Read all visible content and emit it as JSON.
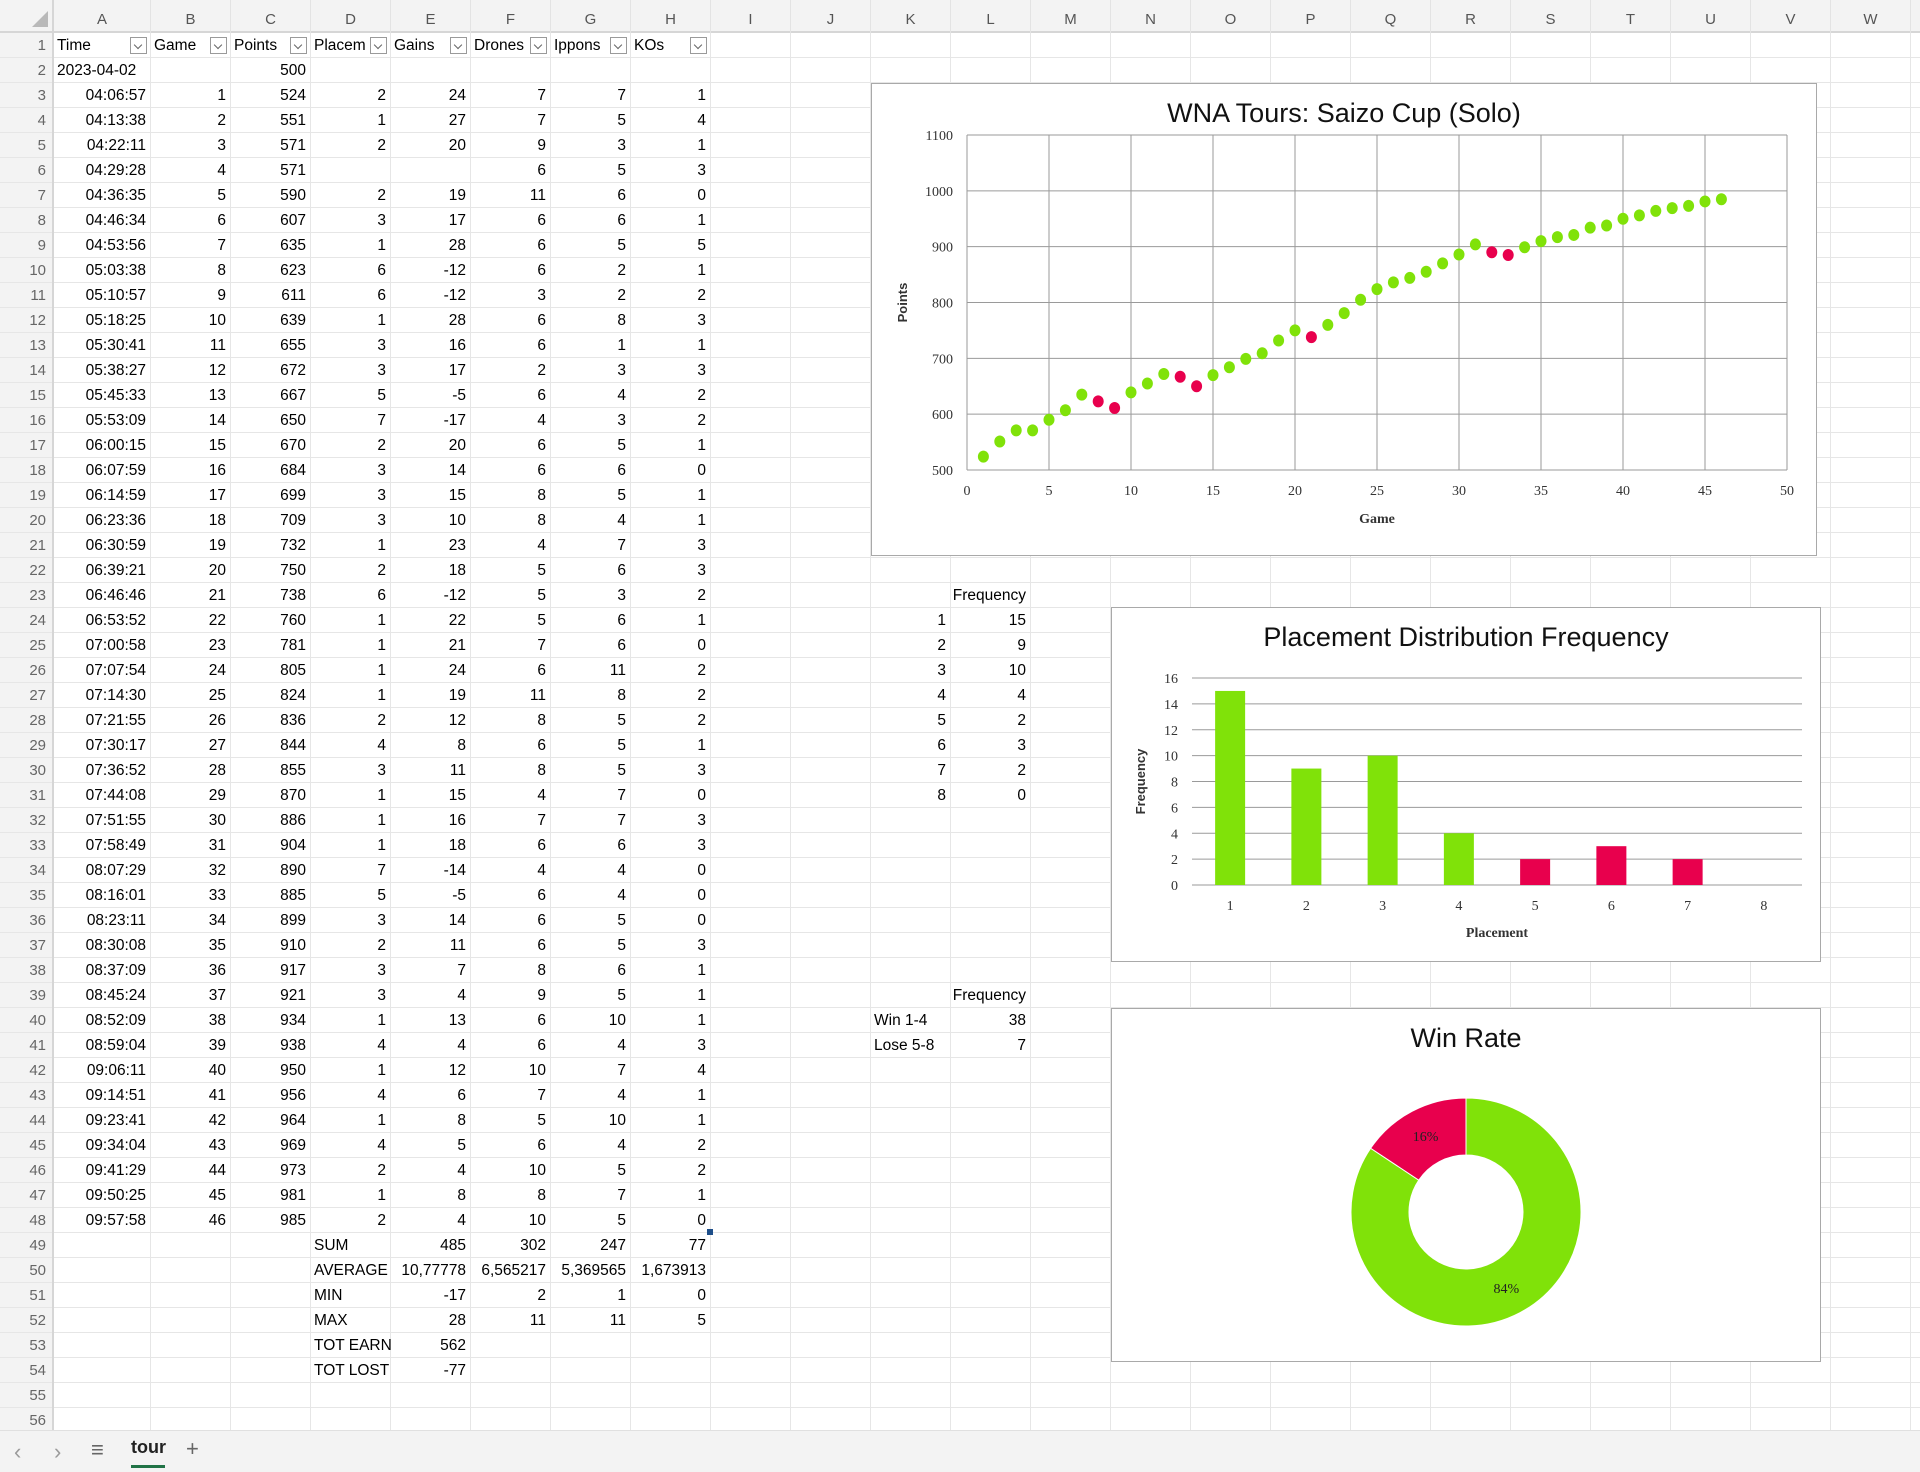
{
  "sheet": {
    "columns": [
      "A",
      "B",
      "C",
      "D",
      "E",
      "F",
      "G",
      "H",
      "I",
      "J",
      "K",
      "L",
      "M",
      "N",
      "O",
      "P",
      "Q",
      "R",
      "S",
      "T",
      "U",
      "V",
      "W"
    ],
    "row_count": 56,
    "headers": [
      "Time",
      "Game",
      "Points",
      "Placem",
      "Gains",
      "Drones",
      "Ippons",
      "KOs"
    ],
    "start_row": {
      "time": "2023-04-02",
      "points": "500"
    },
    "rows": [
      [
        "04:06:57",
        "1",
        "524",
        "2",
        "24",
        "7",
        "7",
        "1"
      ],
      [
        "04:13:38",
        "2",
        "551",
        "1",
        "27",
        "7",
        "5",
        "4"
      ],
      [
        "04:22:11",
        "3",
        "571",
        "2",
        "20",
        "9",
        "3",
        "1"
      ],
      [
        "04:29:28",
        "4",
        "571",
        "",
        "",
        "6",
        "5",
        "3"
      ],
      [
        "04:36:35",
        "5",
        "590",
        "2",
        "19",
        "11",
        "6",
        "0"
      ],
      [
        "04:46:34",
        "6",
        "607",
        "3",
        "17",
        "6",
        "6",
        "1"
      ],
      [
        "04:53:56",
        "7",
        "635",
        "1",
        "28",
        "6",
        "5",
        "5"
      ],
      [
        "05:03:38",
        "8",
        "623",
        "6",
        "-12",
        "6",
        "2",
        "1"
      ],
      [
        "05:10:57",
        "9",
        "611",
        "6",
        "-12",
        "3",
        "2",
        "2"
      ],
      [
        "05:18:25",
        "10",
        "639",
        "1",
        "28",
        "6",
        "8",
        "3"
      ],
      [
        "05:30:41",
        "11",
        "655",
        "3",
        "16",
        "6",
        "1",
        "1"
      ],
      [
        "05:38:27",
        "12",
        "672",
        "3",
        "17",
        "2",
        "3",
        "3"
      ],
      [
        "05:45:33",
        "13",
        "667",
        "5",
        "-5",
        "6",
        "4",
        "2"
      ],
      [
        "05:53:09",
        "14",
        "650",
        "7",
        "-17",
        "4",
        "3",
        "2"
      ],
      [
        "06:00:15",
        "15",
        "670",
        "2",
        "20",
        "6",
        "5",
        "1"
      ],
      [
        "06:07:59",
        "16",
        "684",
        "3",
        "14",
        "6",
        "6",
        "0"
      ],
      [
        "06:14:59",
        "17",
        "699",
        "3",
        "15",
        "8",
        "5",
        "1"
      ],
      [
        "06:23:36",
        "18",
        "709",
        "3",
        "10",
        "8",
        "4",
        "1"
      ],
      [
        "06:30:59",
        "19",
        "732",
        "1",
        "23",
        "4",
        "7",
        "3"
      ],
      [
        "06:39:21",
        "20",
        "750",
        "2",
        "18",
        "5",
        "6",
        "3"
      ],
      [
        "06:46:46",
        "21",
        "738",
        "6",
        "-12",
        "5",
        "3",
        "2"
      ],
      [
        "06:53:52",
        "22",
        "760",
        "1",
        "22",
        "5",
        "6",
        "1"
      ],
      [
        "07:00:58",
        "23",
        "781",
        "1",
        "21",
        "7",
        "6",
        "0"
      ],
      [
        "07:07:54",
        "24",
        "805",
        "1",
        "24",
        "6",
        "11",
        "2"
      ],
      [
        "07:14:30",
        "25",
        "824",
        "1",
        "19",
        "11",
        "8",
        "2"
      ],
      [
        "07:21:55",
        "26",
        "836",
        "2",
        "12",
        "8",
        "5",
        "2"
      ],
      [
        "07:30:17",
        "27",
        "844",
        "4",
        "8",
        "6",
        "5",
        "1"
      ],
      [
        "07:36:52",
        "28",
        "855",
        "3",
        "11",
        "8",
        "5",
        "3"
      ],
      [
        "07:44:08",
        "29",
        "870",
        "1",
        "15",
        "4",
        "7",
        "0"
      ],
      [
        "07:51:55",
        "30",
        "886",
        "1",
        "16",
        "7",
        "7",
        "3"
      ],
      [
        "07:58:49",
        "31",
        "904",
        "1",
        "18",
        "6",
        "6",
        "3"
      ],
      [
        "08:07:29",
        "32",
        "890",
        "7",
        "-14",
        "4",
        "4",
        "0"
      ],
      [
        "08:16:01",
        "33",
        "885",
        "5",
        "-5",
        "6",
        "4",
        "0"
      ],
      [
        "08:23:11",
        "34",
        "899",
        "3",
        "14",
        "6",
        "5",
        "0"
      ],
      [
        "08:30:08",
        "35",
        "910",
        "2",
        "11",
        "6",
        "5",
        "3"
      ],
      [
        "08:37:09",
        "36",
        "917",
        "3",
        "7",
        "8",
        "6",
        "1"
      ],
      [
        "08:45:24",
        "37",
        "921",
        "3",
        "4",
        "9",
        "5",
        "1"
      ],
      [
        "08:52:09",
        "38",
        "934",
        "1",
        "13",
        "6",
        "10",
        "1"
      ],
      [
        "08:59:04",
        "39",
        "938",
        "4",
        "4",
        "6",
        "4",
        "3"
      ],
      [
        "09:06:11",
        "40",
        "950",
        "1",
        "12",
        "10",
        "7",
        "4"
      ],
      [
        "09:14:51",
        "41",
        "956",
        "4",
        "6",
        "7",
        "4",
        "1"
      ],
      [
        "09:23:41",
        "42",
        "964",
        "1",
        "8",
        "5",
        "10",
        "1"
      ],
      [
        "09:34:04",
        "43",
        "969",
        "4",
        "5",
        "6",
        "4",
        "2"
      ],
      [
        "09:41:29",
        "44",
        "973",
        "2",
        "4",
        "10",
        "5",
        "2"
      ],
      [
        "09:50:25",
        "45",
        "981",
        "1",
        "8",
        "8",
        "7",
        "1"
      ],
      [
        "09:57:58",
        "46",
        "985",
        "2",
        "4",
        "10",
        "5",
        "0"
      ]
    ],
    "summary": [
      {
        "label": "SUM",
        "values": [
          "485",
          "302",
          "247",
          "77"
        ]
      },
      {
        "label": "AVERAGE",
        "values": [
          "10,77778",
          "6,565217",
          "5,369565",
          "1,673913"
        ]
      },
      {
        "label": "MIN",
        "values": [
          "-17",
          "2",
          "1",
          "0"
        ]
      },
      {
        "label": "MAX",
        "values": [
          "28",
          "11",
          "11",
          "5"
        ]
      },
      {
        "label": "TOT EARN",
        "values": [
          "562",
          "",
          "",
          ""
        ]
      },
      {
        "label": "TOT LOST",
        "values": [
          "-77",
          "",
          "",
          ""
        ]
      }
    ],
    "placement_freq": {
      "header": "Frequency",
      "rows": [
        [
          "1",
          "15"
        ],
        [
          "2",
          "9"
        ],
        [
          "3",
          "10"
        ],
        [
          "4",
          "4"
        ],
        [
          "5",
          "2"
        ],
        [
          "6",
          "3"
        ],
        [
          "7",
          "2"
        ],
        [
          "8",
          "0"
        ]
      ]
    },
    "winrate_freq": {
      "header": "Frequency",
      "rows": [
        [
          "Win 1-4",
          "38"
        ],
        [
          "Lose 5-8",
          "7"
        ]
      ]
    }
  },
  "colors": {
    "win": "#80e209",
    "lose": "#e8004d",
    "tab_accent": "#217346"
  },
  "tabbar": {
    "prev_icon": "chevron-left-icon",
    "next_icon": "chevron-right-icon",
    "menu_icon": "hamburger-icon",
    "active_tab": "tour",
    "add_icon": "plus-icon"
  },
  "chart_data": [
    {
      "type": "scatter",
      "title": "WNA Tours: Saizo Cup (Solo)",
      "xlabel": "Game",
      "ylabel": "Points",
      "xlim": [
        0,
        50
      ],
      "ylim": [
        500,
        1100
      ],
      "xticks": [
        0,
        5,
        10,
        15,
        20,
        25,
        30,
        35,
        40,
        45,
        50
      ],
      "yticks": [
        500,
        600,
        700,
        800,
        900,
        1000,
        1100
      ],
      "grid": true,
      "x": [
        1,
        2,
        3,
        4,
        5,
        6,
        7,
        8,
        9,
        10,
        11,
        12,
        13,
        14,
        15,
        16,
        17,
        18,
        19,
        20,
        21,
        22,
        23,
        24,
        25,
        26,
        27,
        28,
        29,
        30,
        31,
        32,
        33,
        34,
        35,
        36,
        37,
        38,
        39,
        40,
        41,
        42,
        43,
        44,
        45,
        46
      ],
      "y": [
        524,
        551,
        571,
        571,
        590,
        607,
        635,
        623,
        611,
        639,
        655,
        672,
        667,
        650,
        670,
        684,
        699,
        709,
        732,
        750,
        738,
        760,
        781,
        805,
        824,
        836,
        844,
        855,
        870,
        886,
        904,
        890,
        885,
        899,
        910,
        917,
        921,
        934,
        938,
        950,
        956,
        964,
        969,
        973,
        981,
        985
      ],
      "loss_games": [
        8,
        9,
        13,
        14,
        21,
        32,
        33
      ]
    },
    {
      "type": "bar",
      "title": "Placement Distribution Frequency",
      "xlabel": "Placement",
      "ylabel": "Frequency",
      "categories": [
        "1",
        "2",
        "3",
        "4",
        "5",
        "6",
        "7",
        "8"
      ],
      "values": [
        15,
        9,
        10,
        4,
        2,
        3,
        2,
        0
      ],
      "ylim": [
        0,
        16
      ],
      "yticks": [
        0,
        2,
        4,
        6,
        8,
        10,
        12,
        14,
        16
      ],
      "grid": true
    },
    {
      "type": "pie",
      "subtype": "donut",
      "title": "Win Rate",
      "categories": [
        "Win 1-4",
        "Lose 5-8"
      ],
      "values": [
        38,
        7
      ],
      "labels": [
        "84%",
        "16%"
      ]
    }
  ]
}
